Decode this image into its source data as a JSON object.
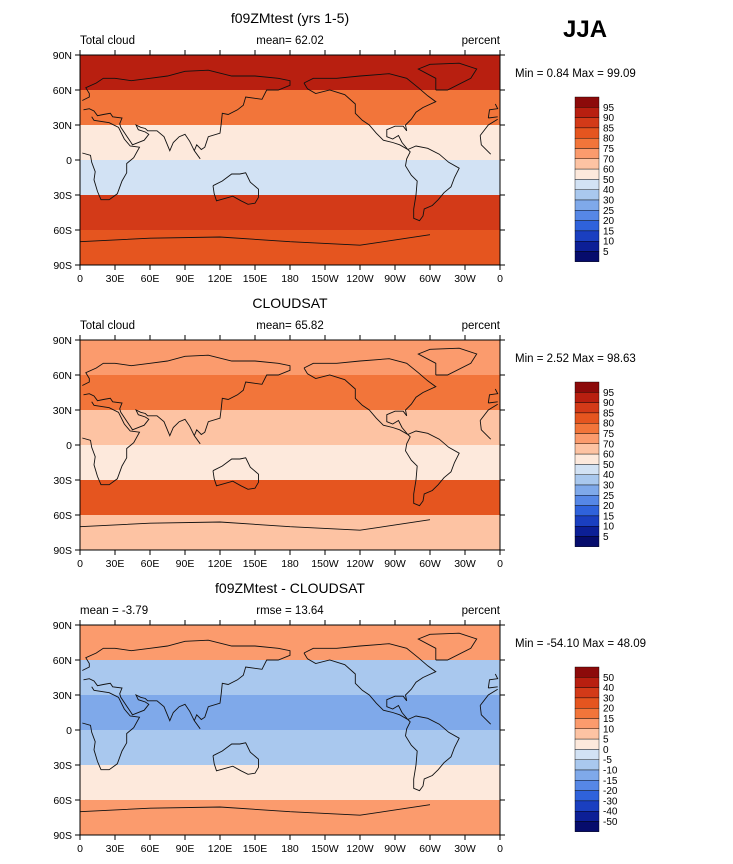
{
  "figure": {
    "season": "JJA",
    "x_ticks": [
      "0",
      "30E",
      "60E",
      "90E",
      "120E",
      "150E",
      "180",
      "150W",
      "120W",
      "90W",
      "60W",
      "30W",
      "0"
    ],
    "y_ticks": [
      "90N",
      "60N",
      "30N",
      "0",
      "30S",
      "60S",
      "90S"
    ]
  },
  "chart_data": [
    {
      "type": "heatmap",
      "title": "f09ZMtest (yrs 1-5)",
      "left_label": "Total cloud",
      "center_label": "mean=   62.02",
      "right_label": "percent",
      "stats": "Min =    0.84 Max =   99.09",
      "mean": 62.02,
      "min": 0.84,
      "max": 99.09,
      "units": "percent",
      "colorbar_levels": [
        "95",
        "90",
        "85",
        "80",
        "75",
        "70",
        "60",
        "50",
        "40",
        "30",
        "25",
        "20",
        "15",
        "10",
        "5"
      ],
      "colorbar_colors": [
        "#8c0a0a",
        "#b81f10",
        "#d33a18",
        "#e5551f",
        "#f2753a",
        "#fb9b6d",
        "#fdc3a3",
        "#fde9dc",
        "#d2e2f4",
        "#a9c8ee",
        "#7fa9ea",
        "#5687e6",
        "#2f62db",
        "#1a3fc0",
        "#0c1f96",
        "#060c6c"
      ],
      "region_means": [
        {
          "zone": "90N-60N",
          "value": 90
        },
        {
          "zone": "60N-30N",
          "value": 78
        },
        {
          "zone": "30N-0",
          "value": 52
        },
        {
          "zone": "0-30S",
          "value": 48
        },
        {
          "zone": "30S-60S",
          "value": 88
        },
        {
          "zone": "60S-90S",
          "value": 82
        }
      ]
    },
    {
      "type": "heatmap",
      "title": "CLOUDSAT",
      "left_label": "Total cloud",
      "center_label": "mean=   65.82",
      "right_label": "percent",
      "stats": "Min =    2.52 Max =   98.63",
      "mean": 65.82,
      "min": 2.52,
      "max": 98.63,
      "units": "percent",
      "colorbar_levels": [
        "95",
        "90",
        "85",
        "80",
        "75",
        "70",
        "60",
        "50",
        "40",
        "30",
        "25",
        "20",
        "15",
        "10",
        "5"
      ],
      "colorbar_colors": [
        "#8c0a0a",
        "#b81f10",
        "#d33a18",
        "#e5551f",
        "#f2753a",
        "#fb9b6d",
        "#fdc3a3",
        "#fde9dc",
        "#d2e2f4",
        "#a9c8ee",
        "#7fa9ea",
        "#5687e6",
        "#2f62db",
        "#1a3fc0",
        "#0c1f96",
        "#060c6c"
      ],
      "region_means": [
        {
          "zone": "90N-60N",
          "value": 72
        },
        {
          "zone": "60N-30N",
          "value": 75
        },
        {
          "zone": "30N-0",
          "value": 62
        },
        {
          "zone": "0-30S",
          "value": 55
        },
        {
          "zone": "30S-60S",
          "value": 82
        },
        {
          "zone": "60S-90S",
          "value": 68
        }
      ]
    },
    {
      "type": "heatmap",
      "title": "f09ZMtest - CLOUDSAT",
      "left_label": "mean =   -3.79",
      "center_label": "rmse =   13.64",
      "right_label": "percent",
      "stats": "Min = -54.10 Max =   48.09",
      "mean": -3.79,
      "rmse": 13.64,
      "min": -54.1,
      "max": 48.09,
      "units": "percent",
      "colorbar_levels": [
        "50",
        "40",
        "30",
        "20",
        "15",
        "10",
        "5",
        "0",
        "-5",
        "-10",
        "-15",
        "-20",
        "-30",
        "-40",
        "-50"
      ],
      "colorbar_colors": [
        "#8c0a0a",
        "#b81f10",
        "#d33a18",
        "#e5551f",
        "#f2753a",
        "#fb9b6d",
        "#fdc3a3",
        "#fde9dc",
        "#d2e2f4",
        "#a9c8ee",
        "#7fa9ea",
        "#5687e6",
        "#2f62db",
        "#1a3fc0",
        "#0c1f96",
        "#060c6c"
      ],
      "region_means": [
        {
          "zone": "90N-60N",
          "value": 12
        },
        {
          "zone": "60N-30N",
          "value": -6
        },
        {
          "zone": "30N-0",
          "value": -12
        },
        {
          "zone": "0-30S",
          "value": -10
        },
        {
          "zone": "30S-60S",
          "value": 4
        },
        {
          "zone": "60S-90S",
          "value": 10
        }
      ]
    }
  ]
}
